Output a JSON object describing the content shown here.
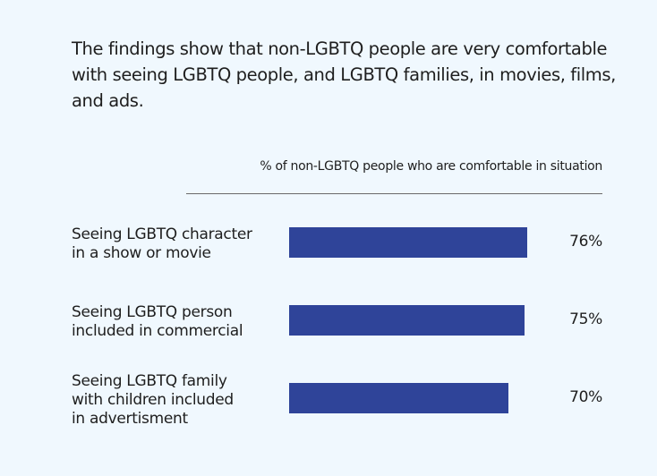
{
  "chart_data": {
    "type": "bar",
    "orientation": "horizontal",
    "title": "The findings show that non-LGBTQ people are very comfortable with seeing LGBTQ people, and LGBTQ families, in movies, films, and ads.",
    "subtitle": "% of non-LGBTQ people who are comfortable in situation",
    "categories": [
      [
        "Seeing LGBTQ character",
        "in a show or movie"
      ],
      [
        "Seeing LGBTQ person",
        "included in commercial"
      ],
      [
        "Seeing LGBTQ family",
        "with children included",
        "in advertisment"
      ]
    ],
    "values": [
      76,
      75,
      70
    ],
    "value_labels": [
      "76%",
      "75%",
      "70%"
    ],
    "xlim": [
      0,
      100
    ],
    "bar_color": "#2f4499"
  }
}
